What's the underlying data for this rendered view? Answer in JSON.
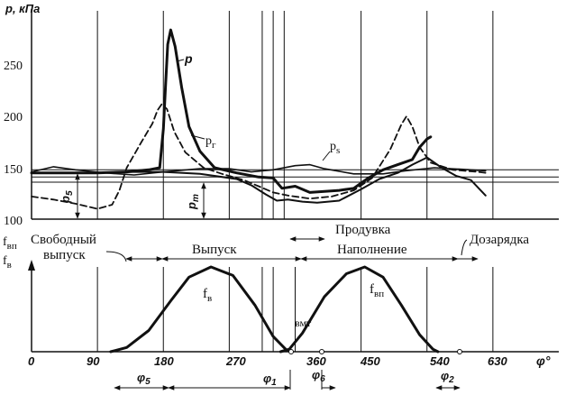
{
  "chart_data": [
    {
      "type": "line",
      "title": "",
      "ylabel": "p, кПа",
      "ylim": [
        100,
        300
      ],
      "yticks": [
        100,
        150,
        200,
        250
      ],
      "xlim": [
        0,
        720
      ],
      "series": [
        {
          "name": "p",
          "style": "thick-solid",
          "points": [
            [
              0,
              145
            ],
            [
              40,
              145
            ],
            [
              90,
              145
            ],
            [
              130,
              146
            ],
            [
              160,
              148
            ],
            [
              175,
              150
            ],
            [
              180,
              188
            ],
            [
              183,
              230
            ],
            [
              186,
              270
            ],
            [
              190,
              284
            ],
            [
              196,
              268
            ],
            [
              205,
              228
            ],
            [
              215,
              190
            ],
            [
              230,
              166
            ],
            [
              250,
              150
            ],
            [
              280,
              145
            ],
            [
              310,
              141
            ],
            [
              330,
              140
            ],
            [
              342,
              130
            ],
            [
              360,
              132
            ],
            [
              380,
              126
            ],
            [
              400,
              127
            ],
            [
              420,
              128
            ],
            [
              440,
              130
            ],
            [
              460,
              140
            ],
            [
              480,
              148
            ],
            [
              500,
              153
            ],
            [
              520,
              158
            ],
            [
              530,
              170
            ],
            [
              540,
              178
            ],
            [
              545,
              180
            ]
          ]
        },
        {
          "name": "p_г",
          "style": "dashed",
          "points": [
            [
              0,
              122
            ],
            [
              30,
              119
            ],
            [
              60,
              115
            ],
            [
              90,
              110
            ],
            [
              110,
              114
            ],
            [
              120,
              128
            ],
            [
              130,
              150
            ],
            [
              150,
              175
            ],
            [
              165,
              193
            ],
            [
              172,
              206
            ],
            [
              178,
              212
            ],
            [
              185,
              207
            ],
            [
              195,
              185
            ],
            [
              210,
              165
            ],
            [
              235,
              150
            ],
            [
              260,
              144
            ],
            [
              290,
              138
            ],
            [
              310,
              132
            ],
            [
              330,
              126
            ],
            [
              350,
              123
            ],
            [
              380,
              120
            ],
            [
              410,
              122
            ],
            [
              440,
              128
            ],
            [
              465,
              140
            ],
            [
              490,
              168
            ],
            [
              505,
              192
            ],
            [
              512,
              200
            ],
            [
              520,
              190
            ],
            [
              530,
              170
            ],
            [
              545,
              155
            ],
            [
              575,
              148
            ],
            [
              610,
              146
            ],
            [
              620,
              145
            ]
          ]
        },
        {
          "name": "p_s",
          "style": "solid",
          "points": [
            [
              0,
              146
            ],
            [
              30,
              151
            ],
            [
              60,
              148
            ],
            [
              100,
              145
            ],
            [
              140,
              143
            ],
            [
              180,
              146
            ],
            [
              230,
              149
            ],
            [
              270,
              149
            ],
            [
              300,
              146
            ],
            [
              330,
              148
            ],
            [
              360,
              152
            ],
            [
              380,
              153
            ],
            [
              400,
              149
            ],
            [
              440,
              144
            ],
            [
              480,
              144
            ],
            [
              510,
              147
            ],
            [
              550,
              150
            ],
            [
              600,
              148
            ],
            [
              620,
              147
            ]
          ]
        },
        {
          "name": "",
          "style": "medium-solid",
          "points": [
            [
              120,
              146
            ],
            [
              180,
              146
            ],
            [
              230,
              144
            ],
            [
              280,
              139
            ],
            [
              300,
              133
            ],
            [
              320,
              124
            ],
            [
              335,
              118
            ],
            [
              350,
              119
            ],
            [
              370,
              117
            ],
            [
              390,
              116
            ],
            [
              420,
              118
            ],
            [
              450,
              129
            ],
            [
              475,
              139
            ],
            [
              500,
              145
            ],
            [
              520,
              153
            ],
            [
              540,
              160
            ],
            [
              560,
              150
            ],
            [
              580,
              142
            ],
            [
              600,
              138
            ],
            [
              620,
              123
            ]
          ]
        }
      ],
      "hlines": [
        148,
        141,
        136
      ],
      "annotations": [
        "p",
        "p_г",
        "p_s",
        "p_5",
        "p_т"
      ]
    },
    {
      "type": "line",
      "ylabel": "f_ВП f_В",
      "xlabel": "φ°",
      "xlim": [
        0,
        720
      ],
      "xticks": [
        0,
        90,
        180,
        270,
        360,
        450,
        540,
        630
      ],
      "series": [
        {
          "name": "f_В",
          "style": "thick-solid",
          "points": [
            [
              108,
              0
            ],
            [
              130,
              0.05
            ],
            [
              160,
              0.25
            ],
            [
              190,
              0.6
            ],
            [
              215,
              0.88
            ],
            [
              245,
              1.0
            ],
            [
              275,
              0.9
            ],
            [
              305,
              0.55
            ],
            [
              330,
              0.18
            ],
            [
              348,
              0.02
            ],
            [
              355,
              0
            ]
          ]
        },
        {
          "name": "f_ВП",
          "style": "thick-solid",
          "points": [
            [
              340,
              0
            ],
            [
              352,
              0.03
            ],
            [
              370,
              0.22
            ],
            [
              400,
              0.65
            ],
            [
              430,
              0.92
            ],
            [
              455,
              1.0
            ],
            [
              480,
              0.88
            ],
            [
              505,
              0.55
            ],
            [
              530,
              0.2
            ],
            [
              548,
              0.03
            ],
            [
              555,
              0
            ]
          ]
        }
      ]
    }
  ],
  "labels": {
    "p_axis": "p, кПа",
    "y250": "250",
    "y200": "200",
    "y150": "150",
    "y100": "100",
    "curve_p": "p",
    "curve_pr_base": "p",
    "curve_pr_sub": "г",
    "curve_ps_base": "p",
    "curve_ps_sub": "s",
    "p5_base": "p",
    "p5_sub": "5",
    "pt_base": "p",
    "pt_sub": "т",
    "fvp_base": "f",
    "fvp_sub": "вп",
    "fv_base": "f",
    "fv_sub": "в",
    "free_exhaust_l1": "Свободный",
    "free_exhaust_l2": "выпуск",
    "exhaust": "Выпуск",
    "purge": "Продувка",
    "filling": "Наполнение",
    "charging": "Дозарядка",
    "curve_fv_base": "f",
    "curve_fv_sub": "в",
    "curve_fvp_base": "f",
    "curve_fvp_sub": "вп",
    "vmt": "вмт",
    "x0": "0",
    "x90": "90",
    "x180": "180",
    "x270": "270",
    "x360": "360",
    "x450": "450",
    "x540": "540",
    "x630": "630",
    "phi_axis": "φ°",
    "phi5_base": "φ",
    "phi5_sub": "5",
    "phi1_base": "φ",
    "phi1_sub": "1",
    "phi6_base": "φ",
    "phi6_sub": "6",
    "phi2_base": "φ",
    "phi2_sub": "2"
  }
}
